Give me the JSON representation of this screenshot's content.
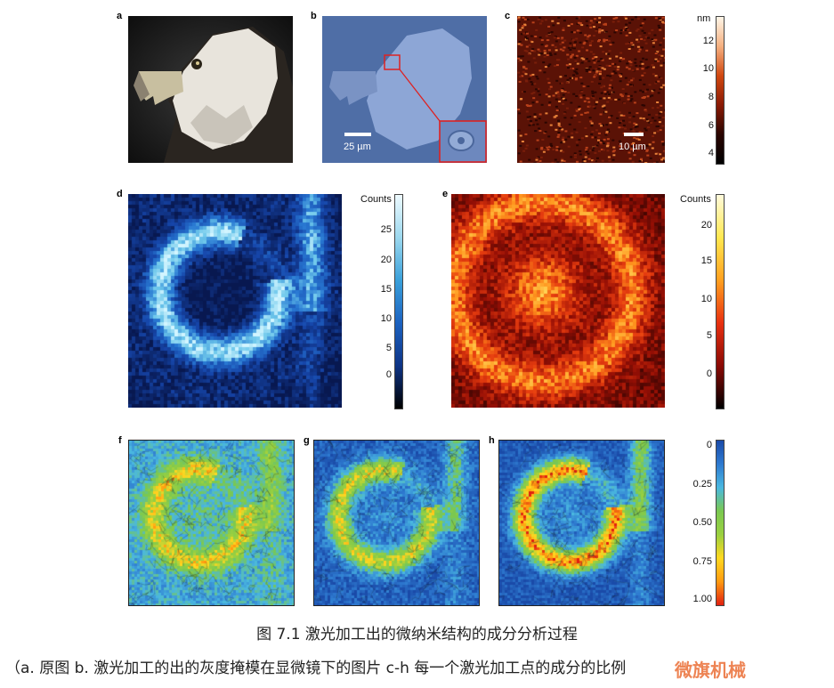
{
  "figure": {
    "panel_labels": [
      "a",
      "b",
      "c",
      "d",
      "e",
      "f",
      "g",
      "h"
    ],
    "scalebar_b": "25 µm",
    "scalebar_c": "10 µm",
    "colorbar_c": {
      "unit": "nm",
      "ticks": [
        "12",
        "10",
        "8",
        "6",
        "4"
      ]
    },
    "colorbar_d": {
      "title": "Counts",
      "ticks": [
        "25",
        "20",
        "15",
        "10",
        "5",
        "0"
      ]
    },
    "colorbar_e": {
      "title": "Counts",
      "ticks": [
        "20",
        "15",
        "10",
        "5",
        "0"
      ]
    },
    "colorbar_fgh": {
      "ticks": [
        "0",
        "0.25",
        "0.50",
        "0.75",
        "1.00"
      ]
    },
    "colors": {
      "frame": "#dd2222",
      "blue_dark": "#0b2a6a",
      "blue_light": "#a8e0f0",
      "red_dark": "#7a0a05",
      "yellow": "#ffe85a"
    }
  },
  "caption": {
    "title": "图 7.1 激光加工出的微纳米结构的成分分析过程",
    "line2": "（a. 原图 b. 激光加工的出的灰度掩模在显微镜下的图片 c-h 每一个激光加工点的成分的比例"
  },
  "watermark": "微旗机械"
}
